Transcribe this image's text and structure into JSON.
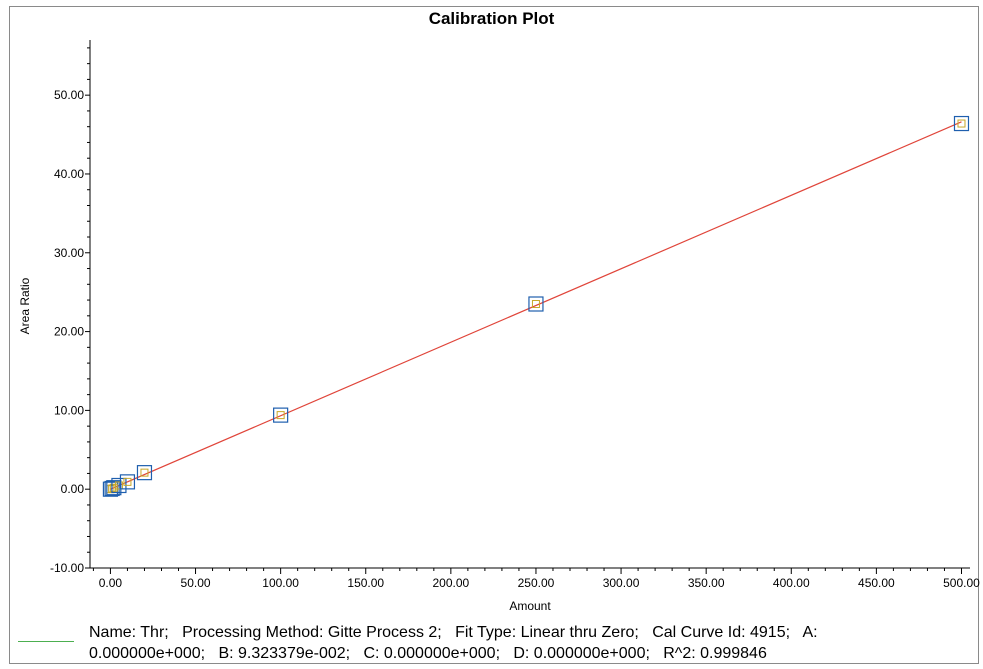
{
  "chart_data": {
    "type": "scatter",
    "title": "Calibration Plot",
    "xlabel": "Amount",
    "ylabel": "Area Ratio",
    "xlim": [
      -12,
      505
    ],
    "ylim": [
      -10,
      57
    ],
    "x_ticks": [
      "0.00",
      "50.00",
      "100.00",
      "150.00",
      "200.00",
      "250.00",
      "300.00",
      "350.00",
      "400.00",
      "450.00",
      "500.00"
    ],
    "x_tick_values": [
      0,
      50,
      100,
      150,
      200,
      250,
      300,
      350,
      400,
      450,
      500
    ],
    "y_ticks": [
      "-10.00",
      "0.00",
      "10.00",
      "20.00",
      "30.00",
      "40.00",
      "50.00"
    ],
    "y_tick_values": [
      -10,
      0,
      10,
      20,
      30,
      40,
      50
    ],
    "points": [
      {
        "x": 0,
        "y": 0.0
      },
      {
        "x": 1,
        "y": 0.09
      },
      {
        "x": 2,
        "y": 0.19
      },
      {
        "x": 5,
        "y": 0.47
      },
      {
        "x": 10,
        "y": 0.93
      },
      {
        "x": 20,
        "y": 2.1
      },
      {
        "x": 100,
        "y": 9.4
      },
      {
        "x": 250,
        "y": 23.5
      },
      {
        "x": 500,
        "y": 46.4
      }
    ],
    "fit": {
      "type": "linear",
      "slope": 0.09323379,
      "intercept": 0,
      "x_range": [
        0,
        500
      ]
    },
    "colors": {
      "fit_line": "#e0453a",
      "marker": "#1f5fae",
      "marker_inner": "#c8a82a",
      "legend_line": "#4caf50"
    },
    "grid": false
  },
  "legend": {
    "line1": "Name: Thr;   Processing Method: Gitte Process 2;   Fit Type: Linear thru Zero;   Cal Curve Id: 4915;   A:",
    "line2": "0.000000e+000;   B: 9.323379e-002;   C: 0.000000e+000;   D: 0.000000e+000;   R^2: 0.999846"
  }
}
